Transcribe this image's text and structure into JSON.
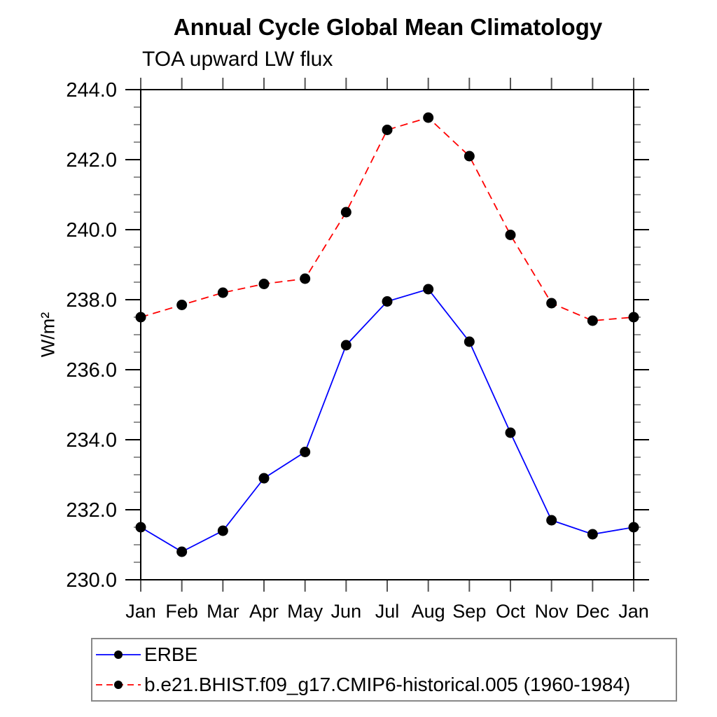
{
  "chart_data": {
    "type": "line",
    "title": "Annual Cycle Global Mean Climatology",
    "subtitle": "TOA upward LW flux",
    "ylabel": "W/m²",
    "xlabel": "",
    "categories": [
      "Jan",
      "Feb",
      "Mar",
      "Apr",
      "May",
      "Jun",
      "Jul",
      "Aug",
      "Sep",
      "Oct",
      "Nov",
      "Dec",
      "Jan"
    ],
    "ylim": [
      230.0,
      244.0
    ],
    "ytick_step": 2.0,
    "ytick_minor_step": 0.5,
    "ytick_labels": [
      "230.0",
      "232.0",
      "234.0",
      "236.0",
      "238.0",
      "240.0",
      "242.0",
      "244.0"
    ],
    "grid": false,
    "legend_position": "bottom-left",
    "marker": "filled-circle",
    "marker_color": "#000000",
    "series": [
      {
        "name": "ERBE",
        "color": "#0000ff",
        "line_style": "solid",
        "values": [
          231.5,
          230.8,
          231.4,
          232.9,
          233.65,
          236.7,
          237.95,
          238.3,
          236.8,
          234.2,
          231.7,
          231.3,
          231.5
        ]
      },
      {
        "name": "b.e21.BHIST.f09_g17.CMIP6-historical.005 (1960-1984)",
        "color": "#ff0000",
        "line_style": "dashed",
        "values": [
          237.5,
          237.85,
          238.2,
          238.45,
          238.6,
          240.5,
          242.85,
          243.2,
          242.1,
          239.85,
          237.9,
          237.4,
          237.5
        ]
      }
    ]
  }
}
